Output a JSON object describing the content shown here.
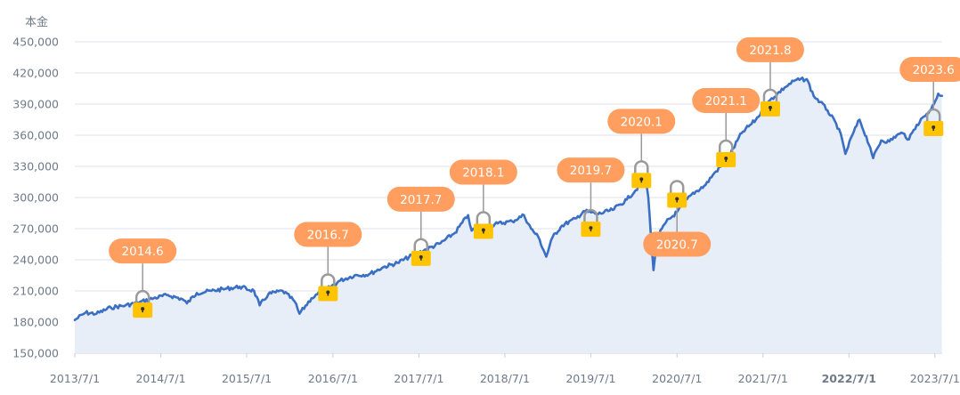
{
  "chart_data": {
    "type": "area",
    "ylabel": "本金",
    "ylim": [
      150000,
      450000
    ],
    "y_ticks": [
      150000,
      180000,
      210000,
      240000,
      270000,
      300000,
      330000,
      360000,
      390000,
      420000,
      450000
    ],
    "y_tick_labels": [
      "150,000",
      "180,000",
      "210,000",
      "240,000",
      "270,000",
      "300,000",
      "330,000",
      "360,000",
      "390,000",
      "420,000",
      "450,000"
    ],
    "x_range": [
      "2013-07-01",
      "2023-08-01"
    ],
    "x_ticks": [
      "2013-07-01",
      "2014-07-01",
      "2015-07-01",
      "2016-07-01",
      "2017-07-01",
      "2018-07-01",
      "2019-07-01",
      "2020-07-01",
      "2021-07-01",
      "2022-07-01",
      "2023-07-01"
    ],
    "x_tick_labels": [
      "2013/7/1",
      "2014/7/1",
      "2015/7/1",
      "2016/7/1",
      "2017/7/1",
      "2018/7/1",
      "2019/7/1",
      "2020/7/1",
      "2021/7/1",
      "2022/7/1",
      "2023/7/1"
    ],
    "highlighted_x_tick": "2022/7/1",
    "grid": "horizontal",
    "colors": {
      "line": "#3a6fc4",
      "fill": "#e8eef8",
      "label_bg": "#ff9e5e",
      "lock": "#ffc300",
      "shackle": "#9a9a9a",
      "grid": "#dde2ec"
    },
    "series": [
      {
        "x": [
          "2013-07-01",
          "2013-08-15",
          "2013-10-01",
          "2013-12-01",
          "2014-02-01",
          "2014-04-01",
          "2014-06-01",
          "2014-08-01",
          "2014-10-01",
          "2014-10-20",
          "2014-12-01",
          "2015-02-01",
          "2015-04-01",
          "2015-06-01",
          "2015-08-01",
          "2015-08-25",
          "2015-10-01",
          "2015-12-01",
          "2016-01-20",
          "2016-02-10",
          "2016-04-01",
          "2016-06-01",
          "2016-08-01",
          "2016-10-01",
          "2016-12-01",
          "2017-02-01",
          "2017-04-01",
          "2017-06-01",
          "2017-08-01",
          "2017-10-01",
          "2017-12-01",
          "2018-01-26",
          "2018-02-10",
          "2018-04-01",
          "2018-06-01",
          "2018-08-01",
          "2018-09-20",
          "2018-10-20",
          "2018-11-20",
          "2018-12-24",
          "2019-01-20",
          "2019-03-01",
          "2019-05-01",
          "2019-06-01",
          "2019-08-01",
          "2019-10-01",
          "2019-12-01",
          "2020-02-19",
          "2020-03-01",
          "2020-03-23",
          "2020-04-10",
          "2020-05-15",
          "2020-07-01",
          "2020-09-01",
          "2020-10-30",
          "2020-12-01",
          "2021-02-01",
          "2021-04-01",
          "2021-06-01",
          "2021-08-01",
          "2021-10-01",
          "2021-11-15",
          "2022-01-03",
          "2022-02-01",
          "2022-03-01",
          "2022-04-01",
          "2022-05-20",
          "2022-06-16",
          "2022-07-15",
          "2022-08-15",
          "2022-09-30",
          "2022-10-12",
          "2022-11-15",
          "2022-12-20",
          "2023-01-20",
          "2023-02-15",
          "2023-03-13",
          "2023-04-15",
          "2023-05-15",
          "2023-06-15",
          "2023-07-15",
          "2023-07-31"
        ],
        "y": [
          182000,
          189000,
          188000,
          194000,
          196000,
          199000,
          203000,
          206000,
          202000,
          198000,
          208000,
          210000,
          212000,
          214000,
          210000,
          196000,
          207000,
          210000,
          200000,
          188000,
          203000,
          211000,
          220000,
          225000,
          226000,
          233000,
          237000,
          244000,
          250000,
          256000,
          266000,
          283000,
          268000,
          270000,
          275000,
          277000,
          283000,
          270000,
          262000,
          243000,
          262000,
          273000,
          280000,
          287000,
          284000,
          288000,
          298000,
          318000,
          300000,
          230000,
          262000,
          276000,
          286000,
          303000,
          312000,
          322000,
          337000,
          362000,
          375000,
          394000,
          406000,
          413000,
          414000,
          398000,
          392000,
          384000,
          366000,
          342000,
          360000,
          375000,
          348000,
          338000,
          355000,
          354000,
          360000,
          362000,
          356000,
          370000,
          378000,
          385000,
          400000,
          398000
        ]
      }
    ],
    "annotations": [
      {
        "label": "2014.6",
        "x": "2014-04-15",
        "y": 197000
      },
      {
        "label": "2016.7",
        "x": "2016-06-10",
        "y": 213000
      },
      {
        "label": "2017.7",
        "x": "2017-07-10",
        "y": 247000
      },
      {
        "label": "2018.1",
        "x": "2018-04-01",
        "y": 273000
      },
      {
        "label": "2019.7",
        "x": "2019-07-01",
        "y": 275000
      },
      {
        "label": "2020.1",
        "x": "2020-02-01",
        "y": 322000
      },
      {
        "label": "2020.7",
        "x": "2020-07-01",
        "y": 303000
      },
      {
        "label": "2021.1",
        "x": "2021-01-25",
        "y": 342000
      },
      {
        "label": "2021.8",
        "x": "2021-08-01",
        "y": 391000
      },
      {
        "label": "2023.6",
        "x": "2023-06-25",
        "y": 372000
      }
    ]
  }
}
